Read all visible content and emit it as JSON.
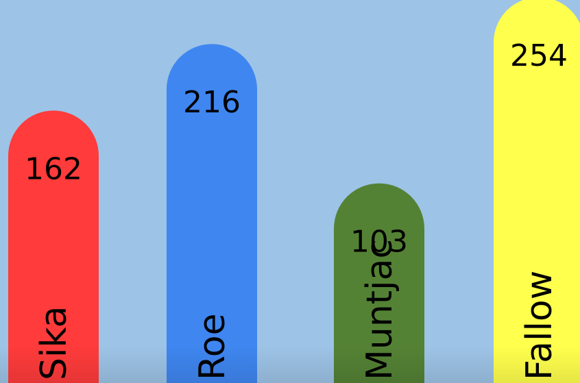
{
  "chart_data": {
    "type": "bar",
    "categories": [
      "Sika",
      "Roe",
      "Muntjac",
      "Fallow"
    ],
    "values": [
      162,
      216,
      103,
      254
    ],
    "colors": [
      "#ff3b3b",
      "#3f86f0",
      "#548235",
      "#ffff4d"
    ],
    "background": "#9dc3e6",
    "bar_shape": "rounded-top",
    "title": "",
    "xlabel": "",
    "ylabel": "",
    "grid": false,
    "legend": "none"
  }
}
